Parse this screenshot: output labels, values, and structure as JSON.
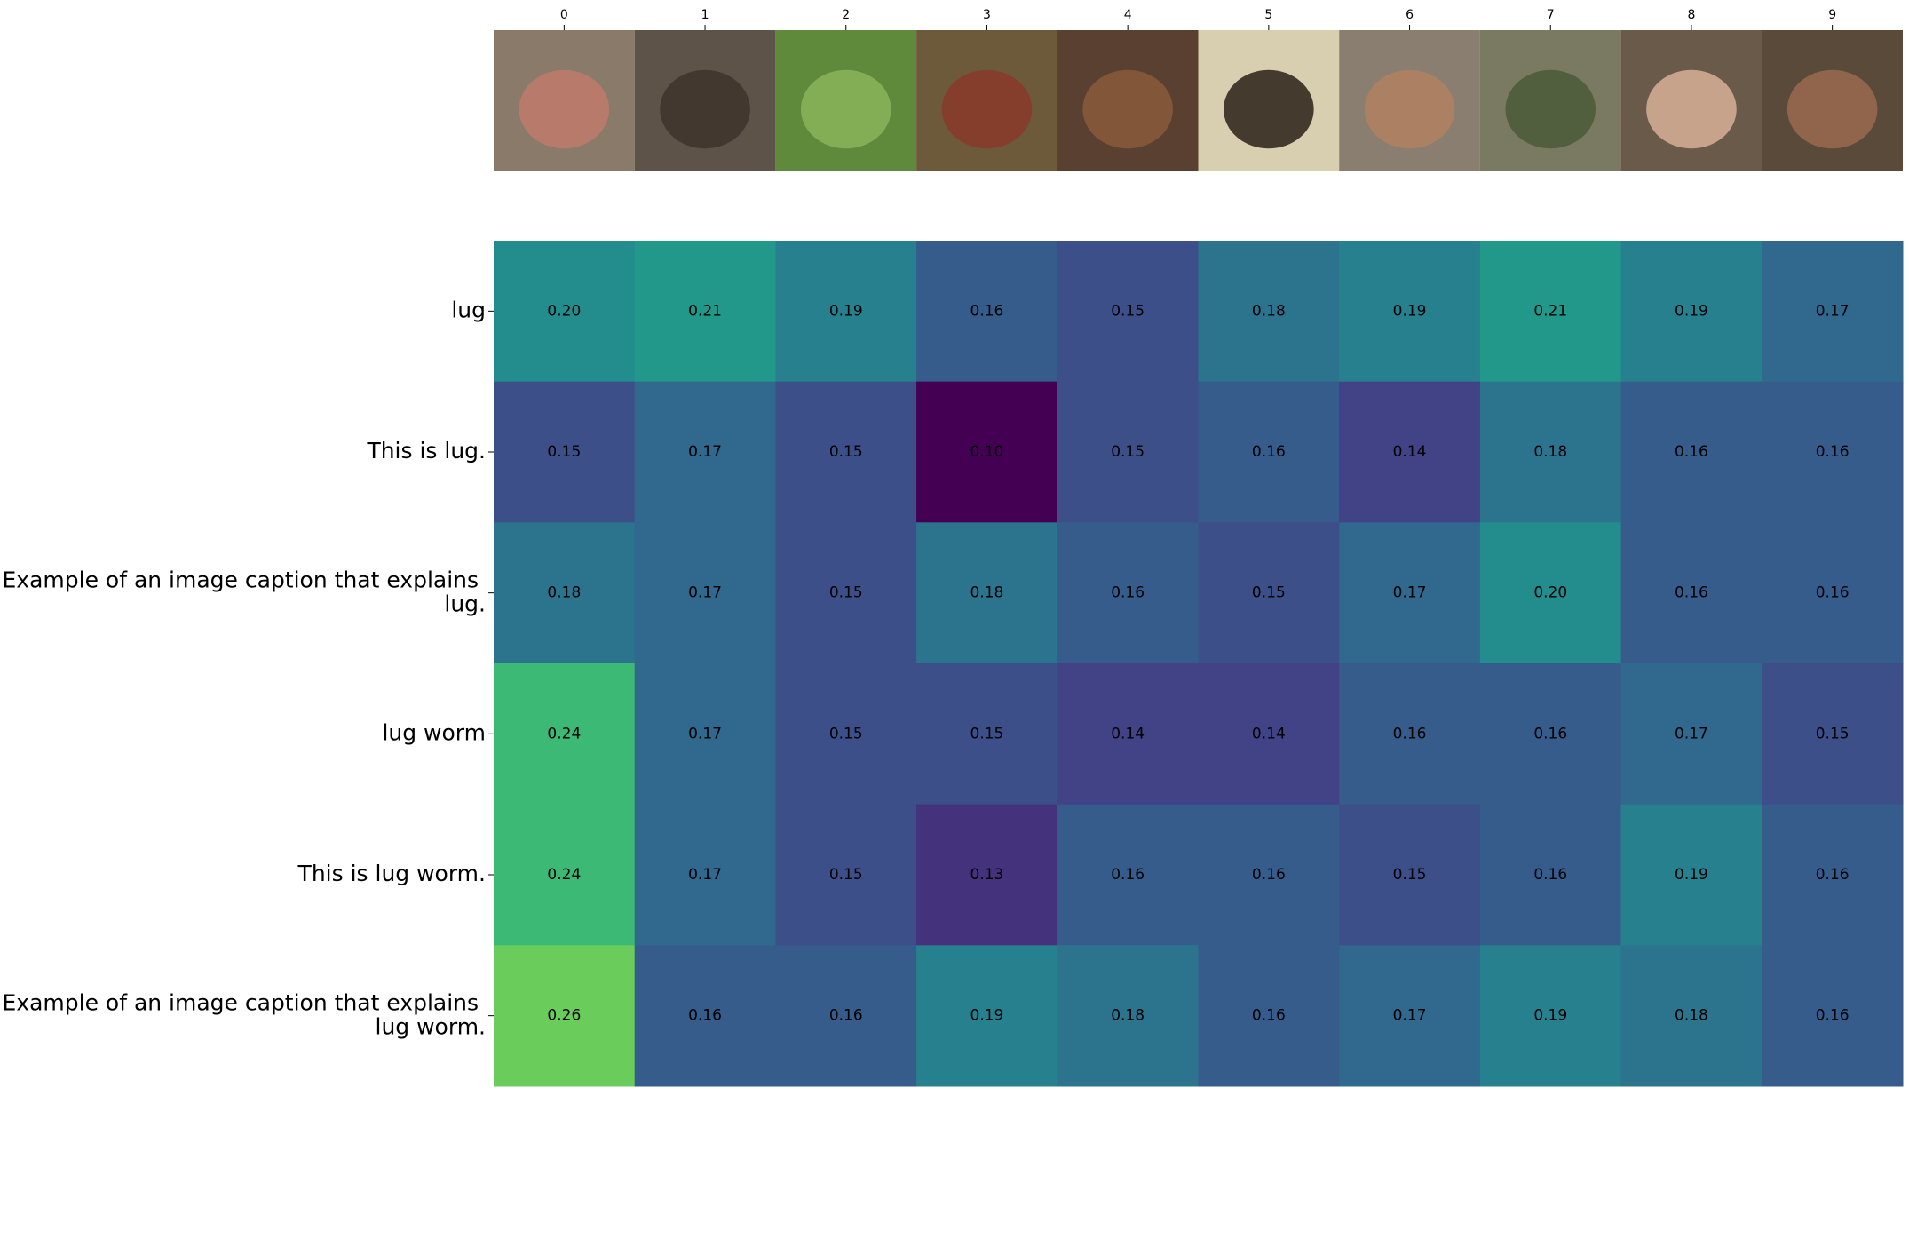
{
  "chart_data": {
    "type": "heatmap",
    "x_categories": [
      "0",
      "1",
      "2",
      "3",
      "4",
      "5",
      "6",
      "7",
      "8",
      "9"
    ],
    "y_categories": [
      "lug",
      "This is lug.",
      "Example of an image caption that explains lug.",
      "lug worm",
      "This is lug worm.",
      "Example of an image caption that explains lug worm."
    ],
    "colormap": "viridis",
    "values": [
      [
        0.2,
        0.21,
        0.19,
        0.16,
        0.15,
        0.18,
        0.19,
        0.21,
        0.19,
        0.17
      ],
      [
        0.15,
        0.17,
        0.15,
        0.1,
        0.15,
        0.16,
        0.14,
        0.18,
        0.16,
        0.16
      ],
      [
        0.18,
        0.17,
        0.15,
        0.18,
        0.16,
        0.15,
        0.17,
        0.2,
        0.16,
        0.16
      ],
      [
        0.24,
        0.17,
        0.15,
        0.15,
        0.14,
        0.14,
        0.16,
        0.16,
        0.17,
        0.15
      ],
      [
        0.24,
        0.17,
        0.15,
        0.13,
        0.16,
        0.16,
        0.15,
        0.16,
        0.19,
        0.16
      ],
      [
        0.26,
        0.16,
        0.16,
        0.19,
        0.18,
        0.16,
        0.17,
        0.19,
        0.18,
        0.16
      ]
    ],
    "value_labels": [
      [
        "0.20",
        "0.21",
        "0.19",
        "0.16",
        "0.15",
        "0.18",
        "0.19",
        "0.21",
        "0.19",
        "0.17"
      ],
      [
        "0.15",
        "0.17",
        "0.15",
        "0.10",
        "0.15",
        "0.16",
        "0.14",
        "0.18",
        "0.16",
        "0.16"
      ],
      [
        "0.18",
        "0.17",
        "0.15",
        "0.18",
        "0.16",
        "0.15",
        "0.17",
        "0.20",
        "0.16",
        "0.16"
      ],
      [
        "0.24",
        "0.17",
        "0.15",
        "0.15",
        "0.14",
        "0.14",
        "0.16",
        "0.16",
        "0.17",
        "0.15"
      ],
      [
        "0.24",
        "0.17",
        "0.15",
        "0.13",
        "0.16",
        "0.16",
        "0.15",
        "0.16",
        "0.19",
        "0.16"
      ],
      [
        "0.26",
        "0.16",
        "0.16",
        "0.19",
        "0.18",
        "0.16",
        "0.17",
        "0.19",
        "0.18",
        "0.16"
      ]
    ]
  }
}
